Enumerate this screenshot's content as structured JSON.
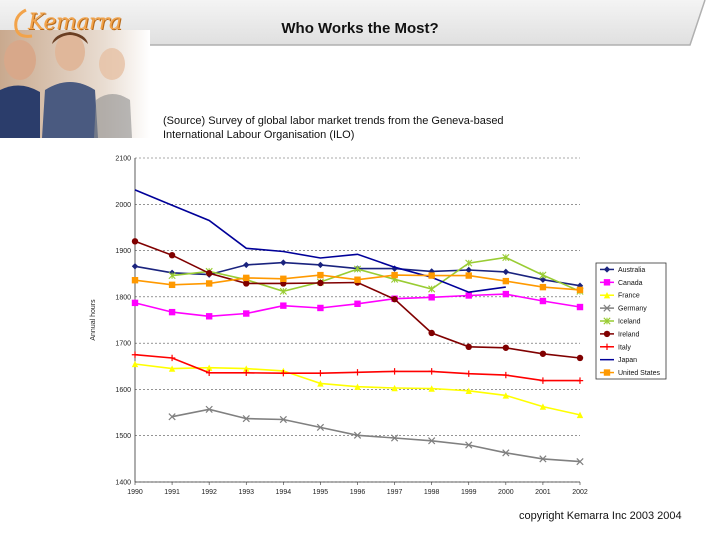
{
  "slide": {
    "title": "Who Works the Most?",
    "logo_text": "Kemarra",
    "source_line1": "(Source) Survey of global labor market trends from the Geneva-based",
    "source_line2": "International Labour Organisation (ILO)",
    "copyright": "copyright Kemarra Inc 2003 2004"
  },
  "colors": {
    "banner_light": "#e8e8e8",
    "banner_dark": "#b5b5b5",
    "logo_orange": "#f2a34a"
  },
  "chart_data": {
    "type": "line",
    "title": "",
    "xlabel": "",
    "ylabel": "Annual hours",
    "ylim": [
      1400,
      2100
    ],
    "y_ticks": [
      1400,
      1500,
      1600,
      1700,
      1800,
      1900,
      2000,
      2100
    ],
    "y_tick_labels": [
      "1400",
      "1500",
      "1600",
      "1700",
      "1800",
      "1900",
      "2000",
      "2100"
    ],
    "grid": true,
    "legend_position": "right",
    "categories": [
      "1990",
      "1991",
      "1992",
      "1993",
      "1994",
      "1995",
      "1996",
      "1997",
      "1998",
      "1999",
      "2000",
      "2001",
      "2002"
    ],
    "series": [
      {
        "name": "Australia",
        "color": "#1a237e",
        "marker": "diamond",
        "values": [
          1866,
          1852,
          1848,
          1869,
          1874,
          1869,
          1861,
          1861,
          1855,
          1858,
          1854,
          1837,
          1824
        ]
      },
      {
        "name": "Canada",
        "color": "#ff00ff",
        "marker": "square",
        "values": [
          1787,
          1767,
          1758,
          1764,
          1781,
          1776,
          1785,
          1796,
          1799,
          1803,
          1806,
          1791,
          1778
        ]
      },
      {
        "name": "France",
        "color": "#ffff00",
        "marker": "triangle",
        "values": [
          1655,
          1645,
          1647,
          1645,
          1640,
          1613,
          1606,
          1603,
          1602,
          1597,
          1587,
          1563,
          1545
        ]
      },
      {
        "name": "Germany",
        "color": "#808080",
        "marker": "x",
        "values": [
          null,
          1541,
          1557,
          1537,
          1535,
          1518,
          1501,
          1495,
          1489,
          1480,
          1463,
          1450,
          1444
        ]
      },
      {
        "name": "Iceland",
        "color": "#99cc33",
        "marker": "star",
        "values": [
          null,
          1846,
          1855,
          1837,
          1812,
          1832,
          1860,
          1838,
          1817,
          1873,
          1885,
          1847,
          1812
        ]
      },
      {
        "name": "Ireland",
        "color": "#800000",
        "marker": "circle",
        "values": [
          1920,
          1890,
          1851,
          1829,
          1829,
          1830,
          1831,
          1795,
          1722,
          1692,
          1690,
          1677,
          1668
        ]
      },
      {
        "name": "Italy",
        "color": "#ff0000",
        "marker": "plus",
        "values": [
          1675,
          1668,
          1636,
          1636,
          1635,
          1635,
          1637,
          1639,
          1639,
          1634,
          1631,
          1619,
          1619
        ]
      },
      {
        "name": "Japan",
        "color": "#000099",
        "marker": "none",
        "values": [
          2031,
          1998,
          1965,
          1905,
          1898,
          1884,
          1892,
          1864,
          1842,
          1810,
          1821,
          null,
          null
        ]
      },
      {
        "name": "United States",
        "color": "#ff9900",
        "marker": "square",
        "values": [
          1836,
          1826,
          1829,
          1841,
          1839,
          1847,
          1837,
          1847,
          1846,
          1846,
          1834,
          1821,
          1815
        ]
      }
    ]
  }
}
